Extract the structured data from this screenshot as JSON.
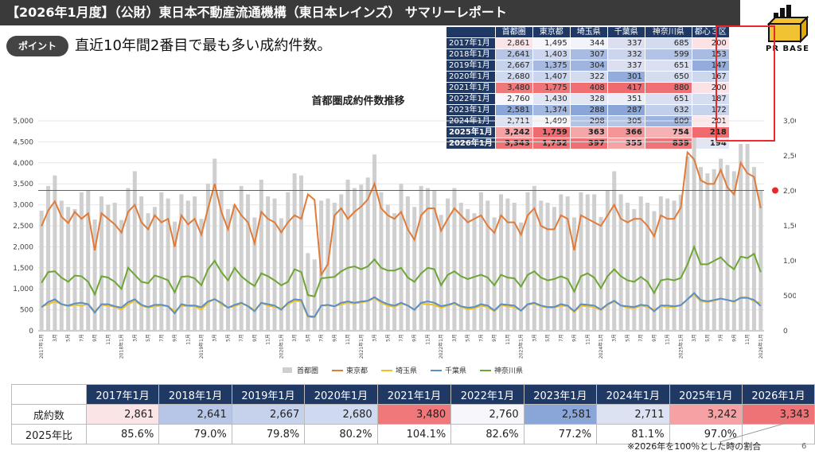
{
  "header": {
    "title": "【2026年1月度】（公財）東日本不動産流通機構（東日本レインズ） サマリーレポート",
    "point_label": "ポイント",
    "point_text": "直近10年間2番目で最も多い成約件数。",
    "logo_text": "PR BASE"
  },
  "summary_table": {
    "columns": [
      "首都圏",
      "東京都",
      "埼玉県",
      "千葉県",
      "神奈川県",
      "都心３区"
    ],
    "rows": [
      {
        "label": "2017年1月",
        "values": [
          "2,861",
          "1,495",
          "344",
          "337",
          "685",
          "200"
        ]
      },
      {
        "label": "2018年1月",
        "values": [
          "2,641",
          "1,403",
          "307",
          "332",
          "599",
          "153"
        ]
      },
      {
        "label": "2019年1月",
        "values": [
          "2,667",
          "1,375",
          "304",
          "337",
          "651",
          "147"
        ]
      },
      {
        "label": "2020年1月",
        "values": [
          "2,680",
          "1,407",
          "322",
          "301",
          "650",
          "167"
        ]
      },
      {
        "label": "2021年1月",
        "values": [
          "3,480",
          "1,775",
          "408",
          "417",
          "880",
          "200"
        ]
      },
      {
        "label": "2022年1月",
        "values": [
          "2,760",
          "1,430",
          "328",
          "351",
          "651",
          "187"
        ]
      },
      {
        "label": "2023年1月",
        "values": [
          "2,581",
          "1,374",
          "288",
          "287",
          "632",
          "172"
        ]
      },
      {
        "label": "2024年1月",
        "values": [
          "2,711",
          "1,499",
          "298",
          "305",
          "609",
          "201"
        ]
      },
      {
        "label": "2025年1月",
        "values": [
          "3,242",
          "1,759",
          "363",
          "366",
          "754",
          "218"
        ]
      },
      {
        "label": "2026年1月",
        "values": [
          "3,343",
          "1,752",
          "397",
          "355",
          "839",
          "194"
        ]
      }
    ],
    "cell_colors": [
      [
        "#fbe4e6",
        "#f7f7fb",
        "#f3f4fa",
        "#dcdff0",
        "#d3dbef",
        "#fbe3e5"
      ],
      [
        "#b7c6e6",
        "#ccd6ee",
        "#a8bbe2",
        "#cbd5ee",
        "#b2c3e6",
        "#a8bbe2"
      ],
      [
        "#c6d2ec",
        "#a5b9e1",
        "#9fb5e0",
        "#dcdff0",
        "#dadff1",
        "#93acdb"
      ],
      [
        "#cfd9ef",
        "#cbd5ee",
        "#d3dbef",
        "#93acdb",
        "#d4dcf0",
        "#cdd7ee"
      ],
      [
        "#f0787b",
        "#ef7477",
        "#ef6f72",
        "#f06b6e",
        "#ef6f72",
        "#fbe3e5"
      ],
      [
        "#f7f7fb",
        "#e2e6f4",
        "#e3e7f4",
        "#ebeef7",
        "#dadff1",
        "#d5ddf0"
      ],
      [
        "#8aa5d8",
        "#a3b8e1",
        "#8aa5d8",
        "#8aa5d8",
        "#c2cfea",
        "#c7d2ec"
      ],
      [
        "#dde2f2",
        "#f6f6fa",
        "#b1c3e6",
        "#b5c5e6",
        "#9db3df",
        "#fde7e9"
      ],
      [
        "#f6a1a4",
        "#ee6c6f",
        "#f4a6a8",
        "#f49698",
        "#f6b1b4",
        "#ef6b6e"
      ],
      [
        "#ee7376",
        "#ee7073",
        "#ef6f72",
        "#f6a3a6",
        "#ef7477",
        "#e2e6f4"
      ]
    ]
  },
  "chart_data": {
    "type": "bar",
    "title": "首都圏成約件数推移",
    "left_axis": {
      "min": 0,
      "max": 5000,
      "ticks": [
        "0",
        "500",
        "1,000",
        "1,500",
        "2,000",
        "2,500",
        "3,000",
        "3,500",
        "4,000",
        "4,500",
        "5,000"
      ]
    },
    "right_axis": {
      "min": 0,
      "max": 3000,
      "ticks": [
        "0",
        "500",
        "1,000",
        "1,500",
        "2,000",
        "2,500",
        "3,000"
      ]
    },
    "x_labels": [
      "2017年1月",
      "3月",
      "5月",
      "7月",
      "9月",
      "11月",
      "2018年1月",
      "3月",
      "5月",
      "7月",
      "9月",
      "11月",
      "2019年1月",
      "3月",
      "5月",
      "7月",
      "9月",
      "11月",
      "2020年1月",
      "3月",
      "5月",
      "7月",
      "9月",
      "11月",
      "2021年1月",
      "3月",
      "5月",
      "7月",
      "9月",
      "11月",
      "2022年1月",
      "3月",
      "5月",
      "7月",
      "9月",
      "11月",
      "2023年1月",
      "3月",
      "5月",
      "7月",
      "9月",
      "11月",
      "2024年1月",
      "3月",
      "5月",
      "7月",
      "9月",
      "11月",
      "2025年1月",
      "3月",
      "5月",
      "7月",
      "9月",
      "11月",
      "2026年1月"
    ],
    "reference_line": {
      "value": 3343,
      "axis": "left"
    },
    "series": [
      {
        "name": "首都圏",
        "axis": "left",
        "kind": "bar",
        "color": "#cfcfcf",
        "values": [
          2861,
          3450,
          3700,
          3100,
          2950,
          2900,
          3300,
          3350,
          2650,
          3200,
          3000,
          3050,
          2641,
          3400,
          3800,
          3200,
          2800,
          2950,
          3300,
          3150,
          2600,
          3250,
          3100,
          3200,
          2667,
          3500,
          4100,
          3350,
          2900,
          3000,
          3450,
          3250,
          2700,
          3600,
          3200,
          3150,
          2680,
          3300,
          3750,
          3700,
          1850,
          1700,
          3100,
          3150,
          3050,
          3250,
          3600,
          3400,
          3480,
          3650,
          4200,
          3300,
          3000,
          2800,
          3500,
          3200,
          2950,
          3450,
          3400,
          3350,
          2760,
          3150,
          3400,
          3050,
          2900,
          2800,
          3300,
          3100,
          2700,
          3250,
          3150,
          3050,
          2581,
          3300,
          3450,
          3100,
          3050,
          2950,
          3250,
          3200,
          2700,
          3300,
          3250,
          3250,
          2711,
          3350,
          3800,
          3250,
          3050,
          2900,
          3200,
          3050,
          2850,
          3200,
          3150,
          3100,
          3242,
          4150,
          4600,
          3900,
          3750,
          3850,
          4100,
          3950,
          3800,
          4450,
          4450,
          3900,
          3343
        ]
      },
      {
        "name": "東京都",
        "axis": "right",
        "kind": "line",
        "color": "#e07b39",
        "values": [
          1495,
          1720,
          1850,
          1630,
          1540,
          1700,
          1600,
          1680,
          1150,
          1680,
          1600,
          1520,
          1403,
          1700,
          1800,
          1550,
          1450,
          1650,
          1550,
          1600,
          1200,
          1650,
          1520,
          1600,
          1375,
          1750,
          2100,
          1700,
          1450,
          1800,
          1650,
          1550,
          1250,
          1700,
          1600,
          1550,
          1407,
          1550,
          1650,
          1600,
          1950,
          1870,
          800,
          950,
          1650,
          1750,
          1600,
          1700,
          1775,
          1880,
          2100,
          1750,
          1650,
          1600,
          1700,
          1450,
          1300,
          1650,
          1750,
          1750,
          1430,
          1600,
          1750,
          1650,
          1550,
          1600,
          1650,
          1500,
          1400,
          1650,
          1550,
          1550,
          1374,
          1650,
          1750,
          1500,
          1450,
          1450,
          1650,
          1600,
          1150,
          1650,
          1600,
          1550,
          1499,
          1650,
          1800,
          1600,
          1550,
          1600,
          1600,
          1500,
          1350,
          1650,
          1600,
          1600,
          1759,
          2550,
          2450,
          2150,
          2100,
          2100,
          2300,
          2050,
          1950,
          2400,
          2250,
          2200,
          1752
        ]
      },
      {
        "name": "埼玉県",
        "axis": "right",
        "kind": "line",
        "color": "#f0c020",
        "values": [
          344,
          380,
          420,
          380,
          350,
          370,
          360,
          380,
          280,
          370,
          360,
          340,
          307,
          380,
          430,
          360,
          330,
          350,
          360,
          350,
          280,
          360,
          350,
          350,
          304,
          400,
          460,
          380,
          330,
          350,
          390,
          360,
          290,
          400,
          360,
          340,
          322,
          380,
          430,
          420,
          200,
          190,
          360,
          360,
          350,
          380,
          400,
          390,
          408,
          420,
          470,
          400,
          360,
          340,
          390,
          360,
          300,
          390,
          380,
          370,
          328,
          360,
          390,
          340,
          310,
          320,
          360,
          340,
          280,
          370,
          350,
          340,
          288,
          370,
          390,
          350,
          330,
          330,
          360,
          350,
          270,
          360,
          350,
          340,
          298,
          370,
          420,
          360,
          330,
          320,
          360,
          340,
          300,
          350,
          340,
          340,
          363,
          450,
          520,
          420,
          410,
          430,
          460,
          440,
          410,
          480,
          480,
          420,
          397
        ]
      },
      {
        "name": "千葉県",
        "axis": "right",
        "kind": "line",
        "color": "#5a8fc8",
        "values": [
          337,
          410,
          450,
          380,
          360,
          390,
          400,
          380,
          260,
          380,
          380,
          350,
          332,
          410,
          450,
          370,
          340,
          370,
          370,
          350,
          250,
          380,
          360,
          360,
          337,
          420,
          450,
          400,
          330,
          370,
          400,
          350,
          280,
          400,
          380,
          360,
          301,
          400,
          450,
          440,
          210,
          200,
          360,
          370,
          350,
          400,
          420,
          400,
          417,
          430,
          480,
          420,
          380,
          360,
          400,
          360,
          300,
          400,
          420,
          400,
          351,
          370,
          400,
          350,
          330,
          340,
          380,
          360,
          290,
          380,
          370,
          360,
          287,
          380,
          400,
          360,
          340,
          340,
          380,
          360,
          280,
          380,
          370,
          360,
          305,
          380,
          430,
          360,
          350,
          340,
          370,
          360,
          280,
          360,
          360,
          350,
          366,
          450,
          540,
          440,
          420,
          440,
          460,
          440,
          420,
          470,
          470,
          440,
          355
        ]
      },
      {
        "name": "神奈川県",
        "axis": "right",
        "kind": "line",
        "color": "#6ea635",
        "values": [
          685,
          840,
          850,
          760,
          700,
          790,
          780,
          700,
          520,
          780,
          760,
          700,
          599,
          900,
          800,
          700,
          680,
          790,
          760,
          720,
          550,
          770,
          780,
          750,
          651,
          880,
          1000,
          840,
          720,
          900,
          780,
          700,
          640,
          820,
          780,
          720,
          650,
          700,
          880,
          840,
          510,
          490,
          750,
          760,
          770,
          850,
          900,
          920,
          880,
          920,
          1020,
          900,
          860,
          860,
          900,
          760,
          700,
          820,
          900,
          880,
          651,
          800,
          850,
          780,
          740,
          770,
          800,
          760,
          650,
          800,
          760,
          750,
          632,
          800,
          850,
          760,
          720,
          740,
          780,
          740,
          560,
          780,
          820,
          760,
          609,
          780,
          880,
          780,
          720,
          700,
          770,
          700,
          540,
          720,
          740,
          720,
          754,
          950,
          1200,
          950,
          950,
          1000,
          1050,
          950,
          880,
          1060,
          1040,
          1100,
          839
        ]
      }
    ],
    "legend": [
      "首都圏",
      "東京都",
      "埼玉県",
      "千葉県",
      "神奈川県"
    ]
  },
  "comparison_table": {
    "headers": [
      "2017年1月",
      "2018年1月",
      "2019年1月",
      "2020年1月",
      "2021年1月",
      "2022年1月",
      "2023年1月",
      "2024年1月",
      "2025年1月",
      "2026年1月"
    ],
    "row1_label": "成約数",
    "row1": [
      "2,861",
      "2,641",
      "2,667",
      "2,680",
      "3,480",
      "2,760",
      "2,581",
      "2,711",
      "3,242",
      "3,343"
    ],
    "row1_colors": [
      "#fbe4e6",
      "#b7c6e6",
      "#c6d2ec",
      "#cfd9ef",
      "#f0787b",
      "#f7f7fb",
      "#8aa5d8",
      "#dde2f2",
      "#f6a1a4",
      "#ee7376"
    ],
    "row2_label": "2025年比",
    "row2": [
      "85.6%",
      "79.0%",
      "79.8%",
      "80.2%",
      "104.1%",
      "82.6%",
      "77.2%",
      "81.1%",
      "97.0%",
      ""
    ],
    "footnote": "※2026年を100％とした時の割合"
  },
  "page_number": "6"
}
